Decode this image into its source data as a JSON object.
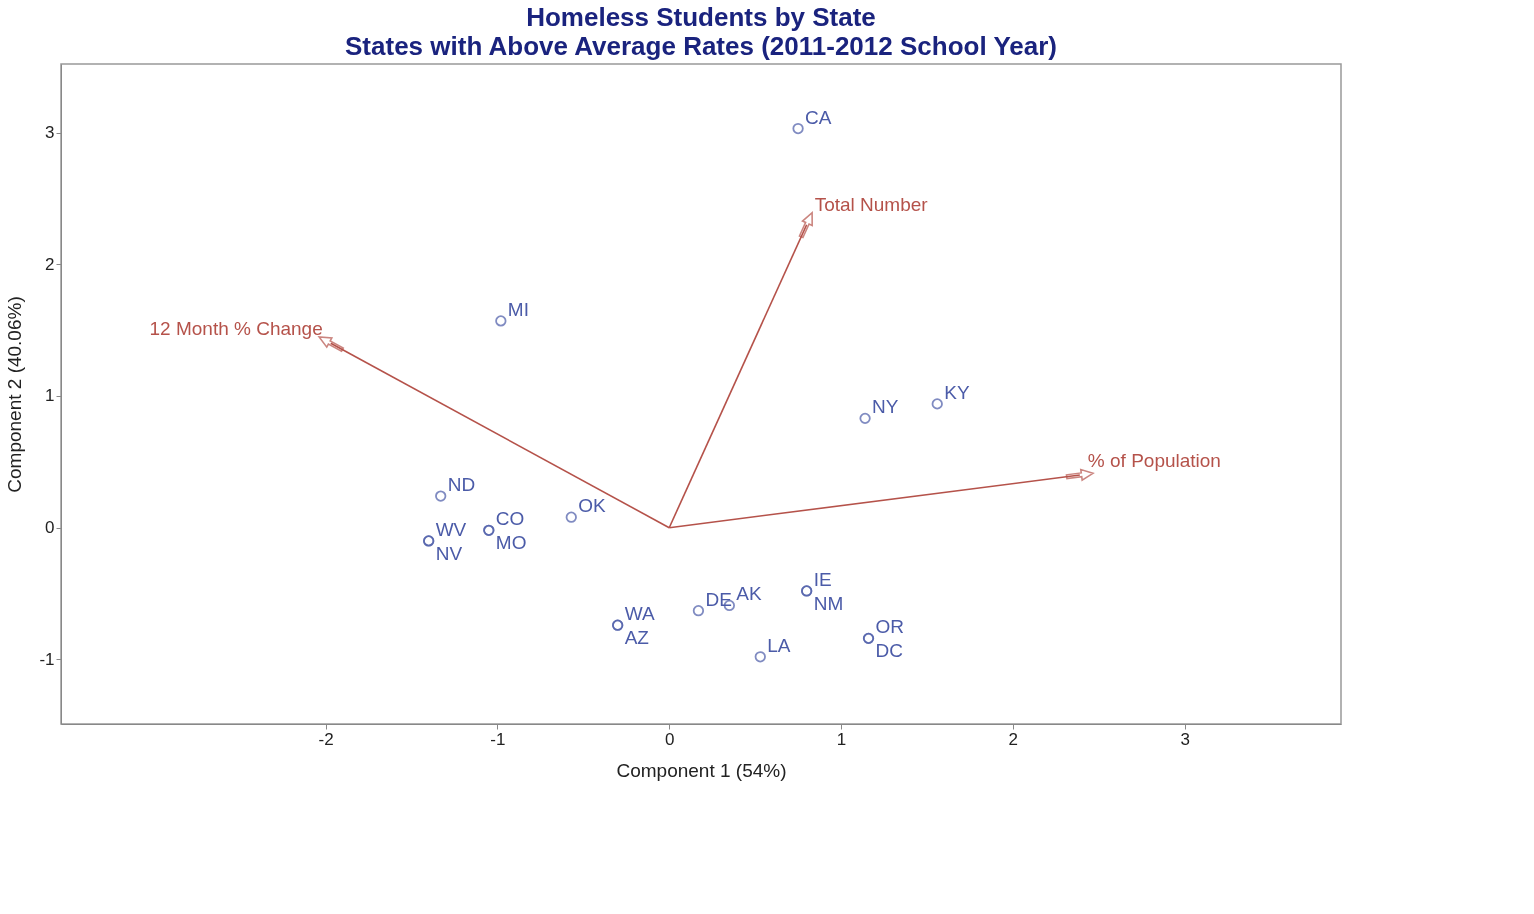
{
  "chart_data": {
    "type": "scatter",
    "title": "Homeless Students by State",
    "subtitle": "States with Above Average Rates (2011-2012 School Year)",
    "xlabel": "Component 1 (54%)",
    "ylabel": "Component 2 (40.06%)",
    "xlim": [
      -3.54,
      3.91
    ],
    "ylim": [
      -1.49,
      3.52
    ],
    "xticks": [
      -2,
      -1,
      0,
      1,
      2,
      3
    ],
    "yticks": [
      -1,
      0,
      1,
      2,
      3
    ],
    "grid": false,
    "legend": false,
    "marker": "circle",
    "series": [
      {
        "color": "#4b5ba8",
        "x": [
          0.75,
          -0.98,
          1.14,
          1.56,
          -1.33,
          -1.05,
          -1.05,
          -1.4,
          -1.4,
          -0.57,
          -0.3,
          -0.3,
          0.17,
          0.35,
          0.8,
          0.8,
          1.16,
          1.16,
          0.53
        ],
        "values": [
          3.03,
          1.57,
          0.83,
          0.94,
          0.24,
          -0.02,
          -0.02,
          -0.1,
          -0.1,
          0.08,
          -0.74,
          -0.74,
          -0.63,
          -0.59,
          -0.48,
          -0.48,
          -0.84,
          -0.84,
          -0.98
        ]
      },
      {
        "type": "line",
        "name": "Total Number",
        "color": "#b5524a",
        "x": [
          0,
          0.8
        ],
        "values": [
          0,
          2.3
        ]
      },
      {
        "type": "line",
        "name": "12 Month % Change",
        "color": "#b5524a",
        "x": [
          0,
          -1.97
        ],
        "values": [
          0,
          1.4
        ]
      },
      {
        "type": "line",
        "name": "% of Population",
        "color": "#b5524a",
        "x": [
          0,
          2.39
        ],
        "values": [
          0,
          0.4
        ]
      }
    ],
    "annotations": [
      {
        "text": "CA",
        "x": 0.75,
        "y": 3.03
      },
      {
        "text": "MI",
        "x": -0.98,
        "y": 1.57
      },
      {
        "text": "NY",
        "x": 1.14,
        "y": 0.83
      },
      {
        "text": "KY",
        "x": 1.56,
        "y": 0.94
      },
      {
        "text": "ND",
        "x": -1.33,
        "y": 0.24
      },
      {
        "text": "CO",
        "x": -1.05,
        "y": -0.02
      },
      {
        "text": "MO",
        "x": -1.05,
        "y": -0.02
      },
      {
        "text": "WV",
        "x": -1.4,
        "y": -0.1
      },
      {
        "text": "NV",
        "x": -1.4,
        "y": -0.1
      },
      {
        "text": "OK",
        "x": -0.57,
        "y": 0.08
      },
      {
        "text": "WA",
        "x": -0.3,
        "y": -0.74
      },
      {
        "text": "AZ",
        "x": -0.3,
        "y": -0.74
      },
      {
        "text": "DE",
        "x": 0.17,
        "y": -0.63
      },
      {
        "text": "AK",
        "x": 0.35,
        "y": -0.59
      },
      {
        "text": "IE",
        "x": 0.8,
        "y": -0.48
      },
      {
        "text": "NM",
        "x": 0.8,
        "y": -0.48
      },
      {
        "text": "OR",
        "x": 1.16,
        "y": -0.84
      },
      {
        "text": "DC",
        "x": 1.16,
        "y": -0.84
      },
      {
        "text": "LA",
        "x": 0.53,
        "y": -0.98
      }
    ]
  }
}
